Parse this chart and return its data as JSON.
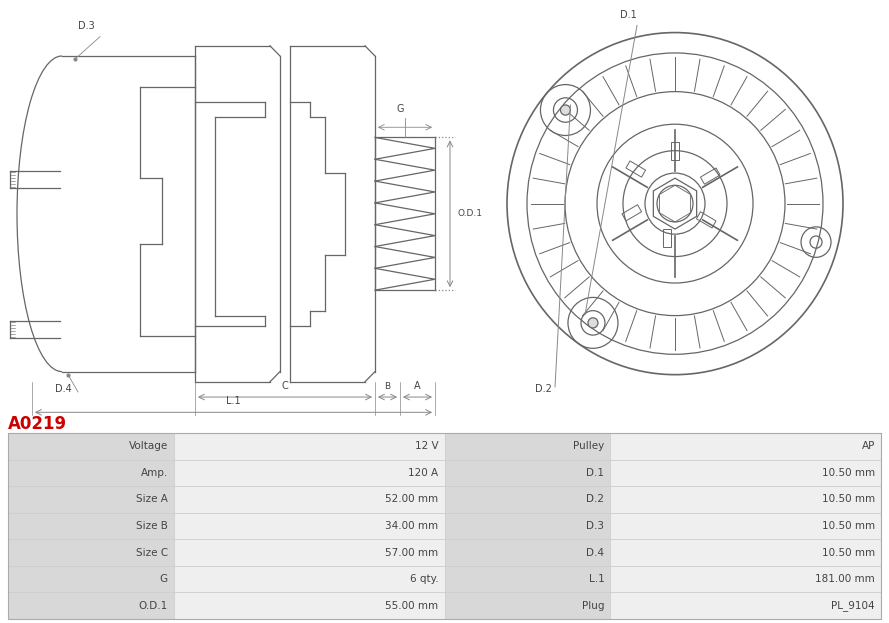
{
  "title": "A0219",
  "title_color": "#cc0000",
  "title_fontsize": 12,
  "bg_color": "#ffffff",
  "table_label_bg": "#d8d8d8",
  "table_value_bg": "#efefef",
  "table_data": [
    [
      "Voltage",
      "12 V",
      "Pulley",
      "AP"
    ],
    [
      "Amp.",
      "120 A",
      "D.1",
      "10.50 mm"
    ],
    [
      "Size A",
      "52.00 mm",
      "D.2",
      "10.50 mm"
    ],
    [
      "Size B",
      "34.00 mm",
      "D.3",
      "10.50 mm"
    ],
    [
      "Size C",
      "57.00 mm",
      "D.4",
      "10.50 mm"
    ],
    [
      "G",
      "6 qty.",
      "L.1",
      "181.00 mm"
    ],
    [
      "O.D.1",
      "55.00 mm",
      "Plug",
      "PL_9104"
    ]
  ],
  "line_color": "#666666",
  "dim_line_color": "#888888",
  "text_color": "#444444",
  "lw": 0.9
}
